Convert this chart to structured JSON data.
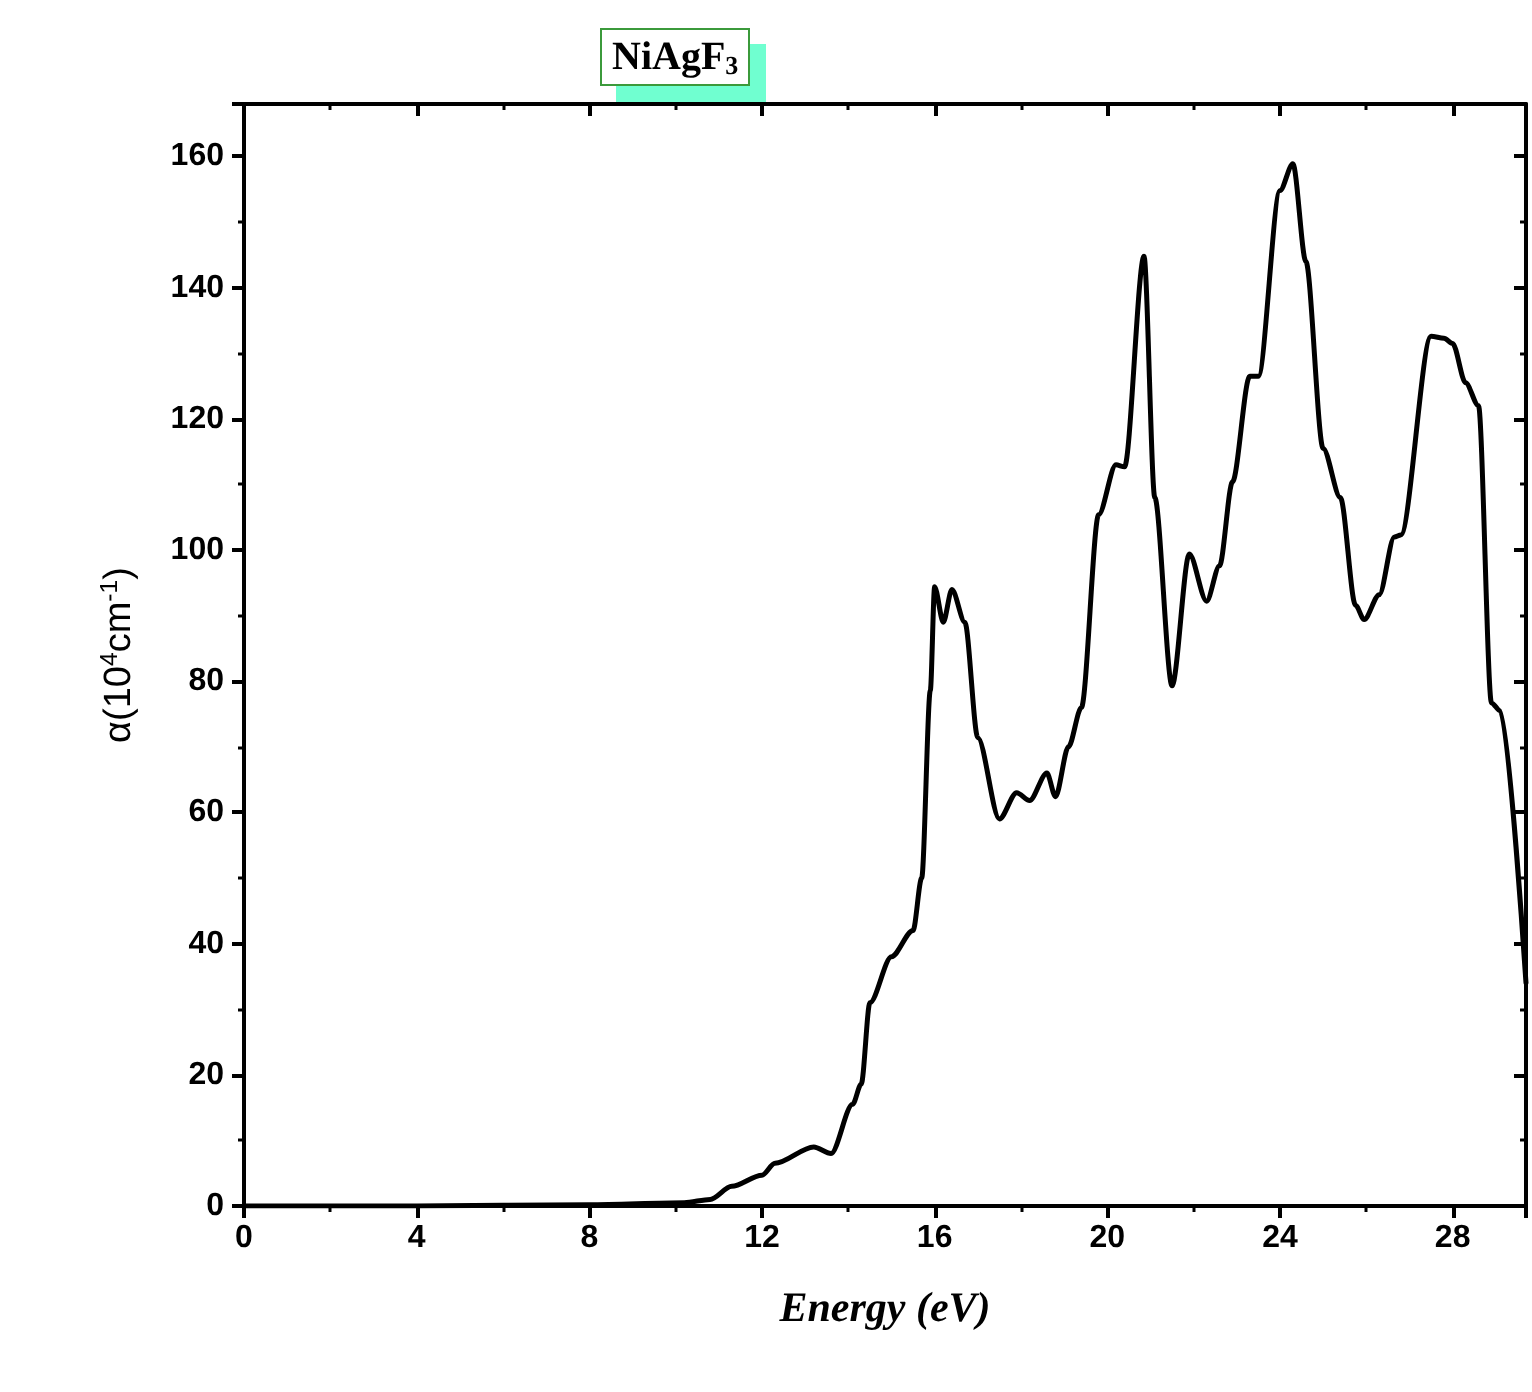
{
  "chart_data": {
    "type": "line",
    "title": "NiAgF$_{3}$",
    "xlabel": "Energy (eV)",
    "ylabel": "α(10$^{4}$cm$^{-1}$)",
    "xlim": [
      0,
      29.7
    ],
    "xticks": [
      0,
      4,
      8,
      12,
      16,
      20,
      24,
      28
    ],
    "ylim": [
      0,
      168
    ],
    "yticks": [
      0,
      20,
      40,
      60,
      80,
      100,
      120,
      140,
      160
    ],
    "grid": false,
    "marker": "none",
    "line_style": "solid",
    "series": [
      {
        "color": "#000000",
        "x": [
          0,
          4,
          8,
          10.2,
          10.8,
          11.3,
          12.0,
          12.3,
          13.2,
          13.6,
          14.1,
          14.3,
          14.5,
          15.0,
          15.5,
          15.7,
          15.9,
          16.0,
          16.2,
          16.4,
          16.7,
          17.0,
          17.5,
          17.9,
          18.2,
          18.6,
          18.8,
          19.1,
          19.4,
          19.8,
          20.2,
          20.4,
          20.85,
          21.1,
          21.5,
          21.9,
          22.3,
          22.6,
          22.9,
          23.3,
          23.5,
          24.0,
          24.3,
          24.6,
          25.0,
          25.4,
          25.75,
          25.95,
          26.3,
          26.65,
          26.8,
          27.5,
          27.8,
          28.0,
          28.3,
          28.6,
          28.9,
          29.1,
          29.7
        ],
        "values": [
          0,
          0,
          0.2,
          0.5,
          1,
          3,
          4.7,
          6.5,
          9,
          8,
          15.5,
          18.6,
          31,
          38,
          42,
          50,
          78.6,
          94.4,
          89,
          94,
          89,
          71.4,
          59,
          63,
          61.8,
          66,
          62.4,
          70,
          76,
          105.4,
          113,
          112.7,
          144.8,
          108,
          79.3,
          99.4,
          92.2,
          97.6,
          110.4,
          126.5,
          126.5,
          154.8,
          158.9,
          144,
          115.5,
          108,
          91.6,
          89.4,
          93.2,
          102,
          102.3,
          132.6,
          132.3,
          131.5,
          125.5,
          122,
          76.7,
          75.5,
          34
        ]
      }
    ]
  }
}
